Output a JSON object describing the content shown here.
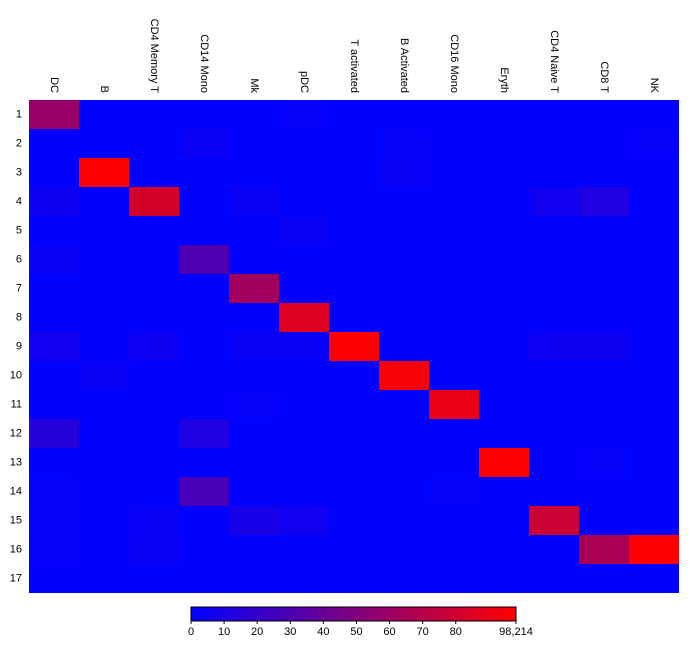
{
  "chart_data": {
    "type": "heatmap",
    "title": "",
    "xlabel": "",
    "ylabel": "",
    "columns": [
      "DC",
      "B",
      "CD4 Memory T",
      "CD14 Mono",
      "Mk",
      "pDC",
      "T activated",
      "B Activated",
      "CD16 Mono",
      "Eryth",
      "CD4 Naive T",
      "CD8 T",
      "NK"
    ],
    "rows": [
      "1",
      "2",
      "3",
      "4",
      "5",
      "6",
      "7",
      "8",
      "9",
      "10",
      "11",
      "12",
      "13",
      "14",
      "15",
      "16",
      "17"
    ],
    "values": [
      [
        58,
        0,
        0,
        0,
        0,
        2,
        0,
        0,
        0,
        0,
        0,
        0,
        0
      ],
      [
        0,
        0,
        0,
        4,
        0,
        0,
        0,
        2,
        0,
        0,
        0,
        0,
        2
      ],
      [
        0,
        98,
        0,
        0,
        0,
        0,
        0,
        3,
        0,
        0,
        0,
        0,
        0
      ],
      [
        5,
        0,
        82,
        0,
        4,
        0,
        0,
        0,
        0,
        0,
        6,
        12,
        0
      ],
      [
        0,
        0,
        0,
        0,
        0,
        3,
        0,
        0,
        0,
        0,
        0,
        0,
        0
      ],
      [
        3,
        0,
        0,
        30,
        0,
        0,
        0,
        0,
        0,
        0,
        0,
        0,
        0
      ],
      [
        0,
        0,
        0,
        0,
        62,
        0,
        0,
        0,
        0,
        0,
        0,
        0,
        0
      ],
      [
        0,
        0,
        0,
        0,
        0,
        85,
        0,
        0,
        0,
        0,
        0,
        0,
        0
      ],
      [
        6,
        0,
        5,
        0,
        4,
        3,
        98,
        0,
        0,
        0,
        5,
        5,
        0
      ],
      [
        0,
        3,
        0,
        0,
        0,
        0,
        0,
        96,
        0,
        0,
        0,
        0,
        0
      ],
      [
        0,
        0,
        0,
        0,
        2,
        0,
        0,
        0,
        90,
        0,
        0,
        0,
        0
      ],
      [
        14,
        0,
        0,
        12,
        0,
        0,
        0,
        0,
        0,
        0,
        0,
        0,
        0
      ],
      [
        0,
        0,
        0,
        0,
        0,
        0,
        0,
        0,
        0,
        98,
        0,
        2,
        0
      ],
      [
        2,
        0,
        0,
        28,
        0,
        0,
        0,
        0,
        2,
        0,
        0,
        0,
        0
      ],
      [
        2,
        0,
        3,
        0,
        9,
        6,
        0,
        0,
        0,
        0,
        78,
        0,
        0
      ],
      [
        2,
        0,
        4,
        0,
        0,
        0,
        0,
        0,
        0,
        0,
        0,
        65,
        98
      ],
      [
        0,
        0,
        0,
        0,
        0,
        0,
        0,
        0,
        0,
        0,
        0,
        0,
        0
      ]
    ],
    "colorscale": {
      "min": 0,
      "max": 98.214,
      "min_color": "#0000ff",
      "max_color": "#ff0000",
      "ticks": [
        0,
        10,
        20,
        30,
        40,
        50,
        60,
        70,
        80
      ],
      "max_label": "98,214"
    },
    "grid": false,
    "legend_position": "bottom"
  }
}
